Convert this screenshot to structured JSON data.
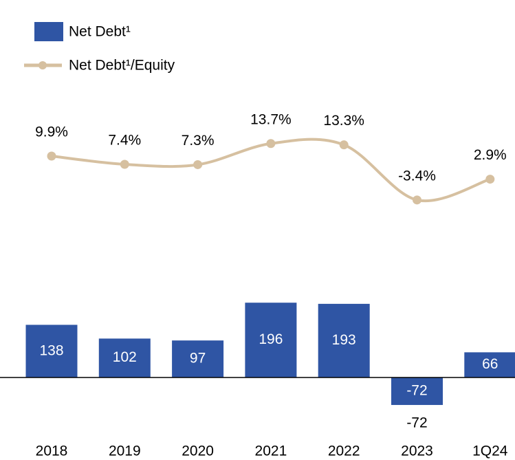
{
  "chart_data": {
    "type": "bar-line",
    "categories": [
      "2018",
      "2019",
      "2020",
      "2021",
      "2022",
      "2023",
      "1Q24"
    ],
    "series": [
      {
        "name": "Net Debt¹",
        "type": "bar",
        "color": "#2f55a4",
        "values": [
          138,
          102,
          97,
          196,
          193,
          -72,
          66
        ]
      },
      {
        "name": "Net Debt¹/Equity",
        "type": "line",
        "axis": "y2",
        "color": "#d6c0a0",
        "values": [
          9.9,
          7.4,
          7.3,
          13.7,
          13.3,
          -3.4,
          2.9
        ],
        "value_labels": [
          "9.9%",
          "7.4%",
          "7.3%",
          "13.7%",
          "13.3%",
          "-3.4%",
          "2.9%"
        ]
      }
    ],
    "ylim": [
      -150,
      300
    ],
    "y2lim": [
      -10,
      20
    ]
  }
}
